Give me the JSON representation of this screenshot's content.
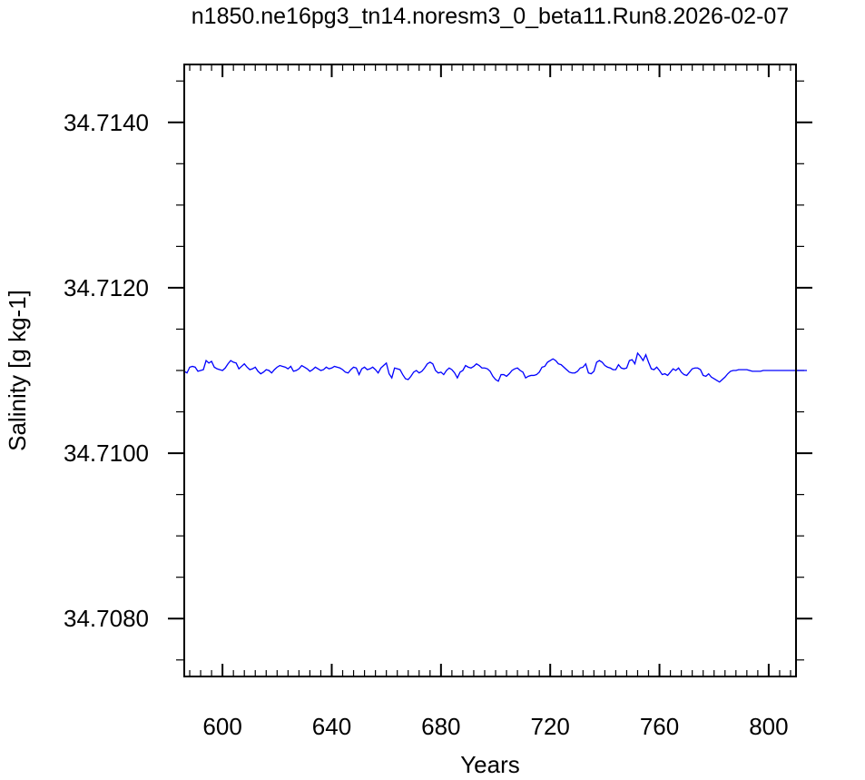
{
  "chart_data": {
    "type": "line",
    "title": "n1850.ne16pg3_tn14.noresm3_0_beta11.Run8.2026-02-07",
    "xlabel": "Years",
    "ylabel": "Salinity [g kg-1]",
    "xlim": [
      586,
      810
    ],
    "ylim": [
      34.7073,
      34.7147
    ],
    "x_ticks": [
      600,
      640,
      680,
      720,
      760,
      800
    ],
    "x_tick_labels": [
      "600",
      "640",
      "680",
      "720",
      "760",
      "800"
    ],
    "y_ticks": [
      34.708,
      34.71,
      34.712,
      34.714
    ],
    "y_tick_labels": [
      "34.7080",
      "34.7100",
      "34.7120",
      "34.7140"
    ],
    "grid": false,
    "line_color": "#0000ff",
    "series": [
      {
        "x_start": 586,
        "x_step": 1,
        "values": [
          34.71099,
          34.71097,
          34.71104,
          34.71105,
          34.71104,
          34.71099,
          34.711,
          34.71101,
          34.71112,
          34.71109,
          34.71111,
          34.71104,
          34.71102,
          34.71101,
          34.711,
          34.71103,
          34.71108,
          34.71112,
          34.7111,
          34.71109,
          34.71102,
          34.71105,
          34.71108,
          34.71104,
          34.71101,
          34.71102,
          34.71104,
          34.71099,
          34.71096,
          34.71098,
          34.71101,
          34.711,
          34.71097,
          34.71101,
          34.71104,
          34.71106,
          34.71105,
          34.71104,
          34.71102,
          34.71105,
          34.71099,
          34.711,
          34.71102,
          34.71106,
          34.71104,
          34.71102,
          34.71099,
          34.71101,
          34.71104,
          34.71102,
          34.711,
          34.71101,
          34.71104,
          34.71102,
          34.71103,
          34.71105,
          34.71104,
          34.71103,
          34.71101,
          34.71098,
          34.71097,
          34.71101,
          34.71104,
          34.71103,
          34.71095,
          34.71102,
          34.71104,
          34.71101,
          34.71102,
          34.71104,
          34.71101,
          34.71097,
          34.71103,
          34.71106,
          34.71109,
          34.71096,
          34.71091,
          34.71103,
          34.71102,
          34.71101,
          34.71095,
          34.7109,
          34.71089,
          34.71093,
          34.71098,
          34.711,
          34.71097,
          34.71099,
          34.71103,
          34.71108,
          34.7111,
          34.71108,
          34.711,
          34.71097,
          34.71098,
          34.71095,
          34.711,
          34.71103,
          34.71101,
          34.71097,
          34.71091,
          34.71098,
          34.711,
          34.71106,
          34.71104,
          34.71103,
          34.71105,
          34.71108,
          34.71106,
          34.71103,
          34.71103,
          34.71102,
          34.71099,
          34.71093,
          34.71089,
          34.71087,
          34.71095,
          34.71095,
          34.71093,
          34.71096,
          34.711,
          34.71102,
          34.71103,
          34.711,
          34.71098,
          34.71091,
          34.71093,
          34.71094,
          34.71094,
          34.71095,
          34.71098,
          34.71104,
          34.71105,
          34.7111,
          34.71112,
          34.71114,
          34.71112,
          34.71108,
          34.71107,
          34.71104,
          34.71101,
          34.71098,
          34.71097,
          34.71097,
          34.71099,
          34.71103,
          34.71104,
          34.71108,
          34.71097,
          34.71096,
          34.71099,
          34.7111,
          34.71112,
          34.7111,
          34.71106,
          34.71104,
          34.71103,
          34.71101,
          34.71101,
          34.71107,
          34.71103,
          34.71102,
          34.71103,
          34.71112,
          34.71113,
          34.71108,
          34.71121,
          34.71117,
          34.71112,
          34.71119,
          34.7111,
          34.71102,
          34.71101,
          34.71104,
          34.711,
          34.71095,
          34.71096,
          34.71094,
          34.71098,
          34.71102,
          34.711,
          34.71103,
          34.71098,
          34.71095,
          34.71094,
          34.71098,
          34.71102,
          34.71103,
          34.71103,
          34.71101,
          34.71094,
          34.71093,
          34.71096,
          34.71092,
          34.7109,
          34.71088,
          34.71086,
          34.71089,
          34.71092,
          34.71096,
          34.71099,
          34.711,
          34.711,
          34.71101,
          34.71101,
          34.71101,
          34.71101,
          34.711,
          34.71099,
          34.71099,
          34.71099,
          34.71099,
          34.711,
          34.711,
          34.711,
          34.711,
          34.711,
          34.711,
          34.711,
          34.711,
          34.711,
          34.711,
          34.711,
          34.711,
          34.711,
          34.711,
          34.711,
          34.711,
          34.711
        ]
      }
    ]
  }
}
